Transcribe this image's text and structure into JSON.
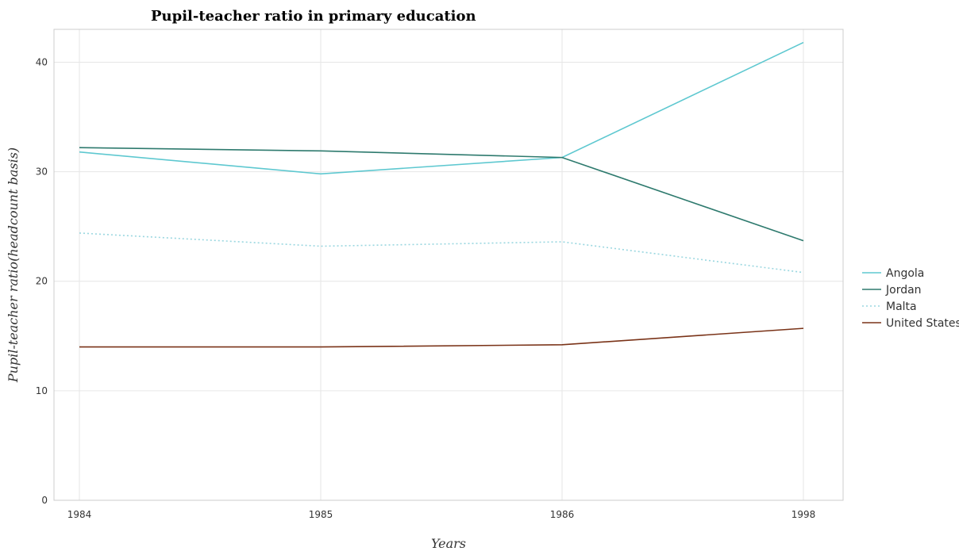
{
  "chart_data": {
    "type": "line",
    "title": "Pupil-teacher ratio in primary education",
    "xlabel": "Years",
    "ylabel": "Pupil-teacher ratio(headcount basis)",
    "categories": [
      "1984",
      "1985",
      "1986",
      "1998"
    ],
    "ylim": [
      0,
      43
    ],
    "yticks": [
      0,
      10,
      20,
      30,
      40
    ],
    "grid": true,
    "legend_position": "right",
    "series": [
      {
        "name": "Angola",
        "color": "#5ec8d0",
        "dashed": false,
        "values": [
          31.8,
          29.8,
          31.3,
          41.8
        ]
      },
      {
        "name": "Jordan",
        "color": "#2e7a6e",
        "dashed": false,
        "values": [
          32.2,
          31.9,
          31.3,
          23.7
        ]
      },
      {
        "name": "Malta",
        "color": "#9ad7e0",
        "dashed": true,
        "values": [
          24.4,
          23.2,
          23.6,
          20.8
        ]
      },
      {
        "name": "United States",
        "color": "#7a3318",
        "dashed": false,
        "values": [
          14.0,
          14.0,
          14.2,
          15.7
        ]
      }
    ]
  }
}
